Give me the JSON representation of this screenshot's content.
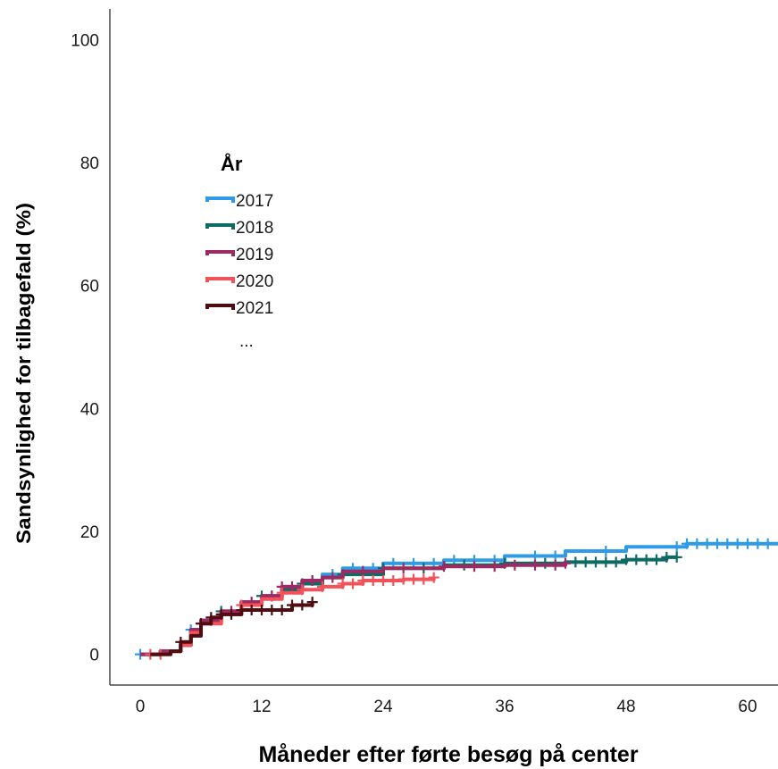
{
  "chart_data": {
    "type": "line",
    "xlabel": "Måneder efter førte besøg på center",
    "ylabel": "Sandsynlighed for tilbagefald (%)",
    "xlim": [
      -3,
      63
    ],
    "ylim": [
      -5,
      105
    ],
    "x_ticks": [
      0,
      12,
      24,
      36,
      48,
      60
    ],
    "y_ticks": [
      0,
      20,
      40,
      60,
      80,
      100
    ],
    "grid": false,
    "legend": {
      "title": "År",
      "placement": "top-left",
      "more_indicator": "..."
    },
    "series": [
      {
        "name": "2017",
        "color": "#2f9be6",
        "points": [
          [
            0,
            0
          ],
          [
            2,
            0.5
          ],
          [
            4,
            1.5
          ],
          [
            5,
            4
          ],
          [
            6,
            5.5
          ],
          [
            8,
            7
          ],
          [
            10,
            8.5
          ],
          [
            12,
            9.5
          ],
          [
            14,
            11
          ],
          [
            16,
            12
          ],
          [
            18,
            13
          ],
          [
            20,
            14
          ],
          [
            24,
            14.8
          ],
          [
            30,
            15.3
          ],
          [
            36,
            16
          ],
          [
            42,
            16.8
          ],
          [
            48,
            17.5
          ],
          [
            54,
            18
          ],
          [
            63,
            18
          ]
        ],
        "censored": [
          0,
          5,
          9,
          13,
          17,
          19,
          21,
          23,
          25,
          27,
          29,
          31,
          33,
          35,
          39,
          41,
          46,
          53,
          54,
          55,
          56,
          57,
          58,
          59,
          60,
          61,
          62
        ]
      },
      {
        "name": "2018",
        "color": "#0d6b63",
        "points": [
          [
            0,
            0
          ],
          [
            2,
            0.5
          ],
          [
            4,
            1.5
          ],
          [
            5,
            4
          ],
          [
            6,
            5.5
          ],
          [
            8,
            7
          ],
          [
            10,
            8.5
          ],
          [
            12,
            9.5
          ],
          [
            14,
            10.5
          ],
          [
            16,
            11.5
          ],
          [
            18,
            12.5
          ],
          [
            20,
            13
          ],
          [
            24,
            14
          ],
          [
            30,
            14.5
          ],
          [
            36,
            14.8
          ],
          [
            42,
            15
          ],
          [
            48,
            15.4
          ],
          [
            52,
            15.8
          ],
          [
            53,
            15.8
          ]
        ],
        "censored": [
          8,
          12,
          16,
          20,
          24,
          28,
          32,
          36,
          40,
          43,
          44,
          45,
          46,
          47,
          48,
          49,
          50,
          51,
          52,
          53
        ]
      },
      {
        "name": "2019",
        "color": "#9e2a63",
        "points": [
          [
            0,
            0
          ],
          [
            2,
            0.5
          ],
          [
            4,
            1.5
          ],
          [
            5,
            4
          ],
          [
            6,
            5.5
          ],
          [
            8,
            7
          ],
          [
            10,
            8.5
          ],
          [
            12,
            9.5
          ],
          [
            14,
            11
          ],
          [
            16,
            12
          ],
          [
            18,
            12.5
          ],
          [
            20,
            13.5
          ],
          [
            24,
            14
          ],
          [
            30,
            14.3
          ],
          [
            36,
            14.5
          ],
          [
            42,
            14.8
          ]
        ],
        "censored": [
          7,
          9,
          11,
          13,
          14,
          15,
          17,
          19,
          22,
          26,
          30,
          33,
          35,
          37,
          39,
          41,
          42
        ]
      },
      {
        "name": "2020",
        "color": "#f2535a",
        "points": [
          [
            1,
            0
          ],
          [
            3,
            0.5
          ],
          [
            4,
            1.5
          ],
          [
            5,
            3.5
          ],
          [
            6,
            5
          ],
          [
            8,
            6.5
          ],
          [
            10,
            8
          ],
          [
            12,
            9
          ],
          [
            14,
            10
          ],
          [
            16,
            10.5
          ],
          [
            18,
            11
          ],
          [
            20,
            11.5
          ],
          [
            22,
            12
          ],
          [
            24,
            12
          ],
          [
            26,
            12.2
          ],
          [
            29,
            12.5
          ]
        ],
        "censored": [
          1,
          2,
          6,
          10,
          14,
          16,
          18,
          20,
          21,
          22,
          23,
          24,
          25,
          26,
          27,
          28,
          29
        ]
      },
      {
        "name": "2021",
        "color": "#4f0d12",
        "points": [
          [
            1,
            0
          ],
          [
            3,
            0.5
          ],
          [
            4,
            2
          ],
          [
            5,
            3
          ],
          [
            6,
            5
          ],
          [
            7,
            6
          ],
          [
            8,
            6.5
          ],
          [
            10,
            7.2
          ],
          [
            12,
            7.2
          ],
          [
            14,
            7.2
          ],
          [
            15,
            8
          ],
          [
            17,
            8.5
          ]
        ],
        "censored": [
          4,
          6,
          7,
          8,
          9,
          10,
          11,
          12,
          13,
          14,
          15,
          16,
          17
        ]
      }
    ]
  }
}
